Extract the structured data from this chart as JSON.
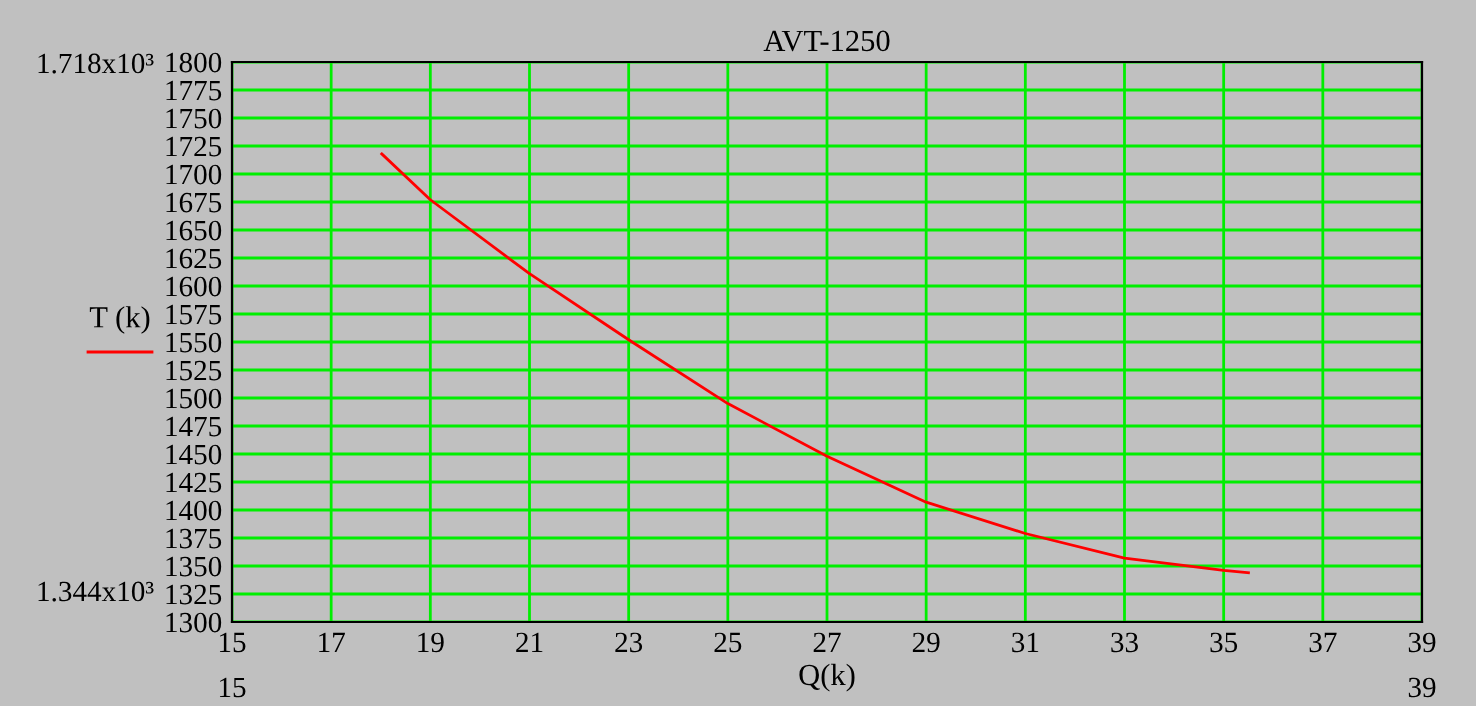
{
  "chart_data": {
    "type": "line",
    "title": "AVT-1250",
    "xlabel": "Q(k)",
    "x": [
      18.02,
      19,
      21,
      23,
      25,
      27,
      29,
      31,
      33,
      35,
      35.5
    ],
    "series": [
      {
        "name": "T (k)",
        "color": "#ff0000",
        "values": [
          1718,
          1677,
          1611,
          1552,
          1495,
          1448,
          1407,
          1379,
          1357,
          1346,
          1344
        ]
      }
    ],
    "xlim": [
      15,
      39
    ],
    "xticks": [
      15,
      17,
      19,
      21,
      23,
      25,
      27,
      29,
      31,
      33,
      35,
      37,
      39
    ],
    "ylim": [
      1300,
      1800
    ],
    "yticks": [
      1300,
      1325,
      1350,
      1375,
      1400,
      1425,
      1450,
      1475,
      1500,
      1525,
      1550,
      1575,
      1600,
      1625,
      1650,
      1675,
      1700,
      1725,
      1750,
      1775,
      1800
    ],
    "grid": true,
    "legend": "left",
    "marker": "none",
    "line_style": "solid",
    "annotations": [
      "1.718x10³",
      "1.344x10³",
      "15",
      "39"
    ]
  }
}
